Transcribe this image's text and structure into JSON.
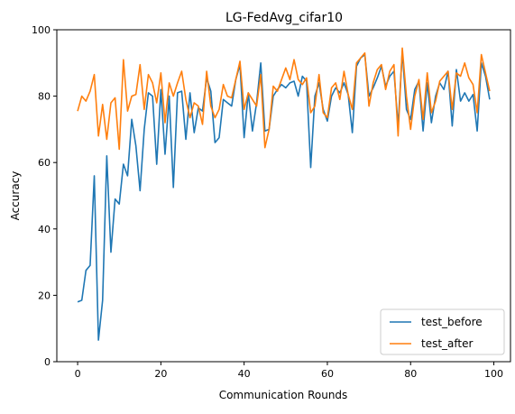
{
  "colors": {
    "test_before": "#1f77b4",
    "test_after": "#ff7f0e"
  },
  "chart_data": {
    "type": "line",
    "title": "LG-FedAvg_cifar10",
    "xlabel": "Communication Rounds",
    "ylabel": "Accuracy",
    "xlim": [
      -5,
      104
    ],
    "ylim": [
      0,
      100
    ],
    "xticks": [
      0,
      20,
      40,
      60,
      80,
      100
    ],
    "yticks": [
      0,
      20,
      40,
      60,
      80,
      100
    ],
    "grid": false,
    "legend_position": "lower-right",
    "x": [
      0,
      1,
      2,
      3,
      4,
      5,
      6,
      7,
      8,
      9,
      10,
      11,
      12,
      13,
      14,
      15,
      16,
      17,
      18,
      19,
      20,
      21,
      22,
      23,
      24,
      25,
      26,
      27,
      28,
      29,
      30,
      31,
      32,
      33,
      34,
      35,
      36,
      37,
      38,
      39,
      40,
      41,
      42,
      43,
      44,
      45,
      46,
      47,
      48,
      49,
      50,
      51,
      52,
      53,
      54,
      55,
      56,
      57,
      58,
      59,
      60,
      61,
      62,
      63,
      64,
      65,
      66,
      67,
      68,
      69,
      70,
      71,
      72,
      73,
      74,
      75,
      76,
      77,
      78,
      79,
      80,
      81,
      82,
      83,
      84,
      85,
      86,
      87,
      88,
      89,
      90,
      91,
      92,
      93,
      94,
      95,
      96,
      97,
      98,
      99
    ],
    "series": [
      {
        "name": "test_before",
        "values": [
          18,
          18.5,
          27.5,
          29,
          56,
          6.5,
          18.5,
          62,
          33,
          49,
          47.5,
          59.5,
          56,
          73,
          65,
          51.5,
          70,
          81,
          80,
          59.5,
          82,
          62.5,
          80,
          52.5,
          81,
          81.5,
          67,
          81,
          69,
          76.5,
          75.5,
          85.5,
          81.5,
          66,
          67.5,
          79,
          78,
          77,
          85,
          89.5,
          67.5,
          81,
          69.5,
          78,
          90,
          69.5,
          70,
          80,
          82,
          83.5,
          82.5,
          84,
          84.5,
          80,
          86,
          84.5,
          58.5,
          80,
          84,
          76,
          72.5,
          80,
          82.5,
          81,
          84,
          80.5,
          69,
          89,
          91.5,
          92.5,
          80,
          82.5,
          85.5,
          89,
          83,
          86,
          87.5,
          71,
          93.5,
          76,
          73,
          82,
          84.5,
          69.5,
          84,
          72,
          80,
          84,
          82,
          87.5,
          71,
          88,
          78.5,
          81,
          78.5,
          80.5,
          69.5,
          90,
          86,
          79
        ]
      },
      {
        "name": "test_after",
        "values": [
          75.5,
          80,
          78.5,
          81.5,
          86.5,
          68,
          77.5,
          67,
          78,
          79.5,
          64,
          91,
          75.5,
          80,
          80.5,
          89.5,
          76,
          86.5,
          84,
          78,
          87,
          72,
          84,
          80,
          84,
          87.5,
          79,
          73.5,
          78,
          77,
          71.5,
          87.5,
          77,
          73.5,
          76,
          83.5,
          80,
          79.5,
          85,
          90.5,
          76,
          81,
          79,
          77,
          86.5,
          64.5,
          70,
          83,
          81.5,
          85,
          88.5,
          85,
          91,
          85,
          83.5,
          85.5,
          75,
          77,
          86.5,
          75,
          73.5,
          82.5,
          84,
          79,
          87.5,
          80.5,
          76,
          90,
          91.5,
          93,
          77,
          84,
          88,
          89.5,
          82,
          87.5,
          89.5,
          68,
          94.5,
          80,
          70,
          80,
          85,
          73,
          87,
          75,
          78.5,
          84.5,
          86,
          87.5,
          76,
          87,
          86,
          90,
          85.5,
          83.5,
          75,
          92.5,
          87,
          81.5
        ]
      }
    ]
  }
}
